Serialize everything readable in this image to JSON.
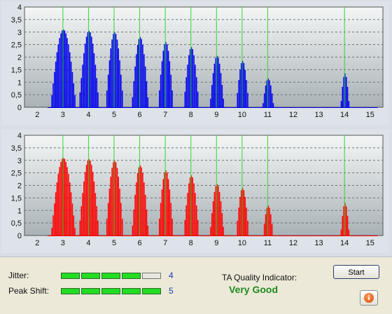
{
  "chart_data": [
    {
      "type": "bar",
      "color": "#0000ee",
      "xlim": [
        1.5,
        15.5
      ],
      "ylim": [
        0,
        4
      ],
      "xticks": [
        2,
        3,
        4,
        5,
        6,
        7,
        8,
        9,
        10,
        11,
        12,
        13,
        14,
        15
      ],
      "yticks": [
        0,
        0.5,
        1,
        1.5,
        2,
        2.5,
        3,
        3.5,
        4
      ],
      "ytick_labels": [
        "0",
        "0,5",
        "1",
        "1,5",
        "2",
        "2,5",
        "3",
        "3,5",
        "4"
      ],
      "markers": [
        3,
        4,
        5,
        6,
        7,
        8,
        9,
        10,
        11,
        14
      ],
      "grid": true,
      "peaks": [
        {
          "x": 3,
          "y": 3.1,
          "width": 0.5
        },
        {
          "x": 4,
          "y": 3.05,
          "width": 0.4
        },
        {
          "x": 5,
          "y": 3.0,
          "width": 0.35
        },
        {
          "x": 6,
          "y": 2.8,
          "width": 0.33
        },
        {
          "x": 7,
          "y": 2.6,
          "width": 0.3
        },
        {
          "x": 8,
          "y": 2.4,
          "width": 0.3
        },
        {
          "x": 9,
          "y": 2.05,
          "width": 0.28
        },
        {
          "x": 10,
          "y": 1.85,
          "width": 0.25
        },
        {
          "x": 11,
          "y": 1.15,
          "width": 0.22
        },
        {
          "x": 14,
          "y": 1.35,
          "width": 0.17
        }
      ]
    },
    {
      "type": "bar",
      "color": "#ff0000",
      "xlim": [
        1.5,
        15.5
      ],
      "ylim": [
        0,
        4
      ],
      "xticks": [
        2,
        3,
        4,
        5,
        6,
        7,
        8,
        9,
        10,
        11,
        12,
        13,
        14,
        15
      ],
      "yticks": [
        0,
        0.5,
        1,
        1.5,
        2,
        2.5,
        3,
        3.5,
        4
      ],
      "ytick_labels": [
        "0",
        "0,5",
        "1",
        "1,5",
        "2",
        "2,5",
        "3",
        "3,5",
        "4"
      ],
      "markers": [
        3,
        4,
        5,
        6,
        7,
        8,
        9,
        10,
        11,
        14
      ],
      "grid": true,
      "peaks": [
        {
          "x": 3,
          "y": 3.1,
          "width": 0.48
        },
        {
          "x": 4,
          "y": 3.05,
          "width": 0.4
        },
        {
          "x": 5,
          "y": 3.0,
          "width": 0.35
        },
        {
          "x": 6,
          "y": 2.8,
          "width": 0.33
        },
        {
          "x": 7,
          "y": 2.6,
          "width": 0.3
        },
        {
          "x": 8,
          "y": 2.4,
          "width": 0.3
        },
        {
          "x": 9,
          "y": 2.05,
          "width": 0.28
        },
        {
          "x": 10,
          "y": 1.9,
          "width": 0.25
        },
        {
          "x": 11,
          "y": 1.2,
          "width": 0.2
        },
        {
          "x": 14,
          "y": 1.3,
          "width": 0.17
        }
      ]
    }
  ],
  "status": {
    "jitter_label": "Jitter:",
    "jitter_value": "4",
    "jitter_level": 4,
    "peak_shift_label": "Peak Shift:",
    "peak_shift_value": "5",
    "peak_shift_level": 5,
    "meter_segments": 5,
    "ta_label": "TA Quality Indicator:",
    "ta_value": "Very Good",
    "start_label": "Start",
    "info_icon": "info-icon",
    "info_glyph": "i"
  }
}
